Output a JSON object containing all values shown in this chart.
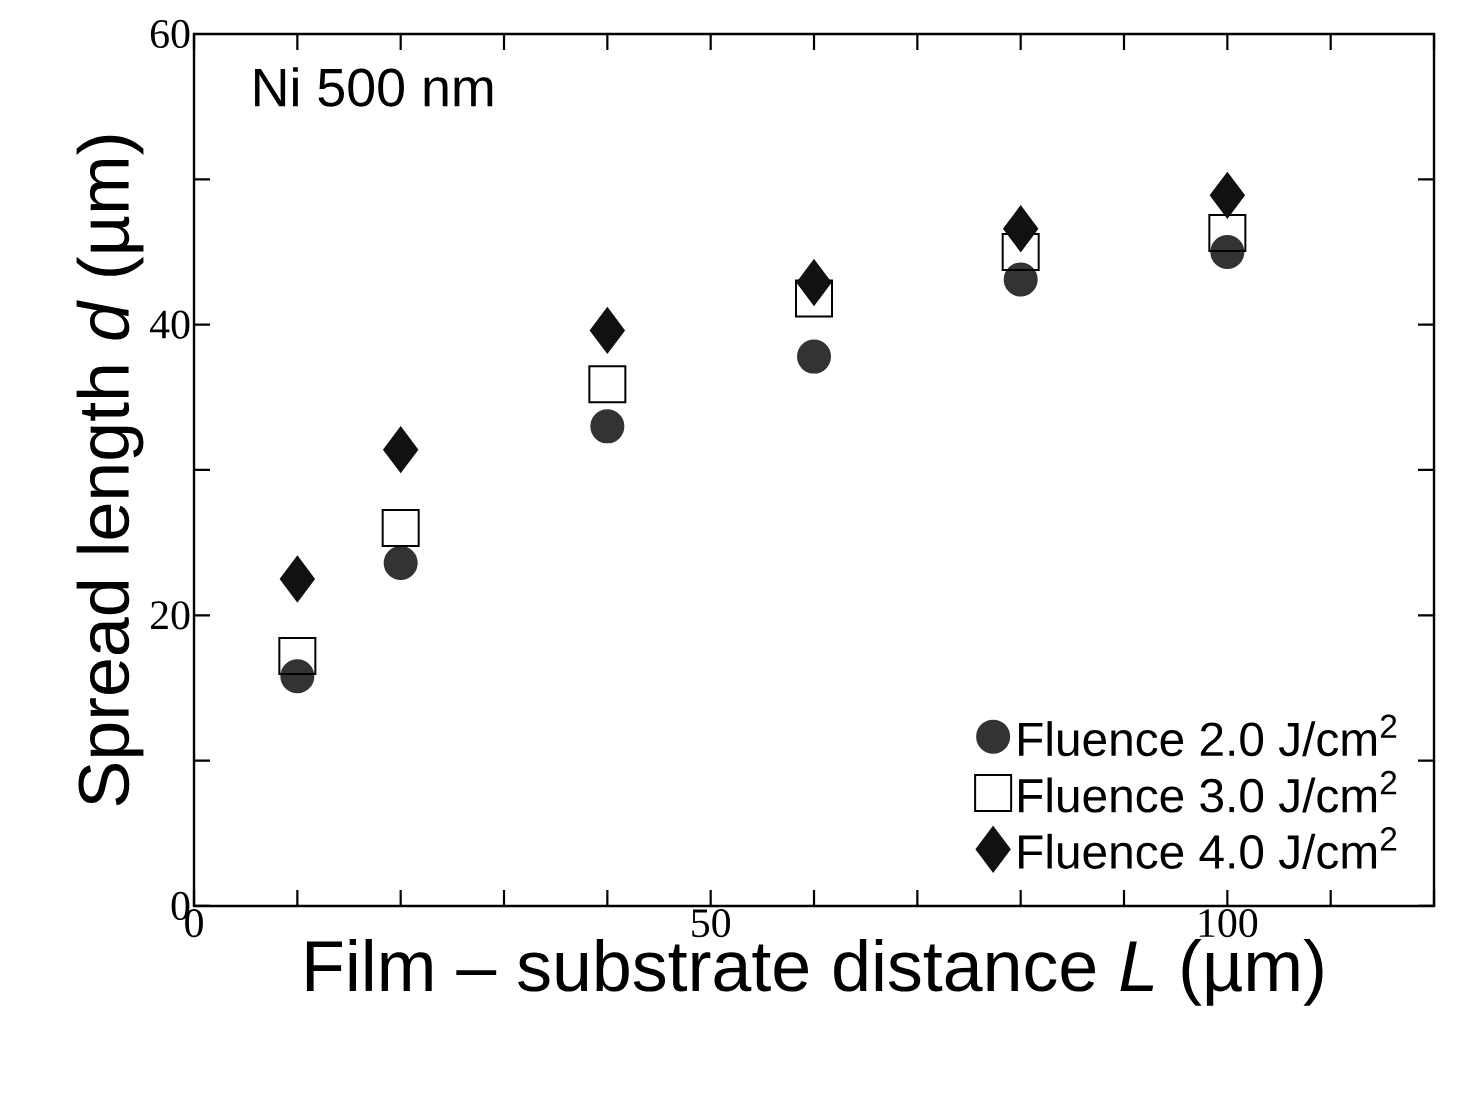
{
  "chart_data": {
    "type": "scatter",
    "xlabel": "Film – substrate distance *L* (µm)",
    "ylabel": "Spread length *d* (µm)",
    "annotations": [
      "Ni 500 nm"
    ],
    "xlim": [
      0,
      120
    ],
    "ylim": [
      0,
      60
    ],
    "xticks": [
      0,
      {
        "value": 10,
        "label": null
      },
      {
        "value": 20,
        "label": null
      },
      {
        "value": 30,
        "label": null
      },
      {
        "value": 40,
        "label": null
      },
      50,
      {
        "value": 60,
        "label": null
      },
      {
        "value": 70,
        "label": null
      },
      {
        "value": 80,
        "label": null
      },
      {
        "value": 90,
        "label": null
      },
      100,
      {
        "value": 110,
        "label": null
      },
      {
        "value": 120,
        "label": null
      }
    ],
    "yticks": [
      0,
      {
        "value": 10,
        "label": null
      },
      20,
      {
        "value": 30,
        "label": null
      },
      40,
      {
        "value": 50,
        "label": null
      },
      60
    ],
    "grid": false,
    "legend": "bottom right",
    "series": [
      {
        "name": "Fluence 2.0 J/cm$^{2}$",
        "color": "#333333",
        "marker": "circle",
        "x": [
          10,
          20,
          40,
          60,
          80,
          100
        ],
        "values": [
          15.8,
          23.6,
          33.0,
          37.8,
          43.1,
          45.0
        ]
      },
      {
        "name": "Fluence 3.0 J/cm$^{2}$",
        "color": "#000000",
        "marker": "square",
        "x": [
          10,
          20,
          40,
          60,
          80,
          100
        ],
        "values": [
          17.2,
          26.0,
          35.9,
          41.8,
          45.0,
          46.3
        ]
      },
      {
        "name": "Fluence 4.0 J/cm$^{2}$",
        "color": "#111111",
        "marker": "diamond",
        "x": [
          10,
          20,
          40,
          60,
          80,
          100
        ],
        "values": [
          22.5,
          31.4,
          39.6,
          42.9,
          46.6,
          48.9
        ]
      }
    ]
  }
}
